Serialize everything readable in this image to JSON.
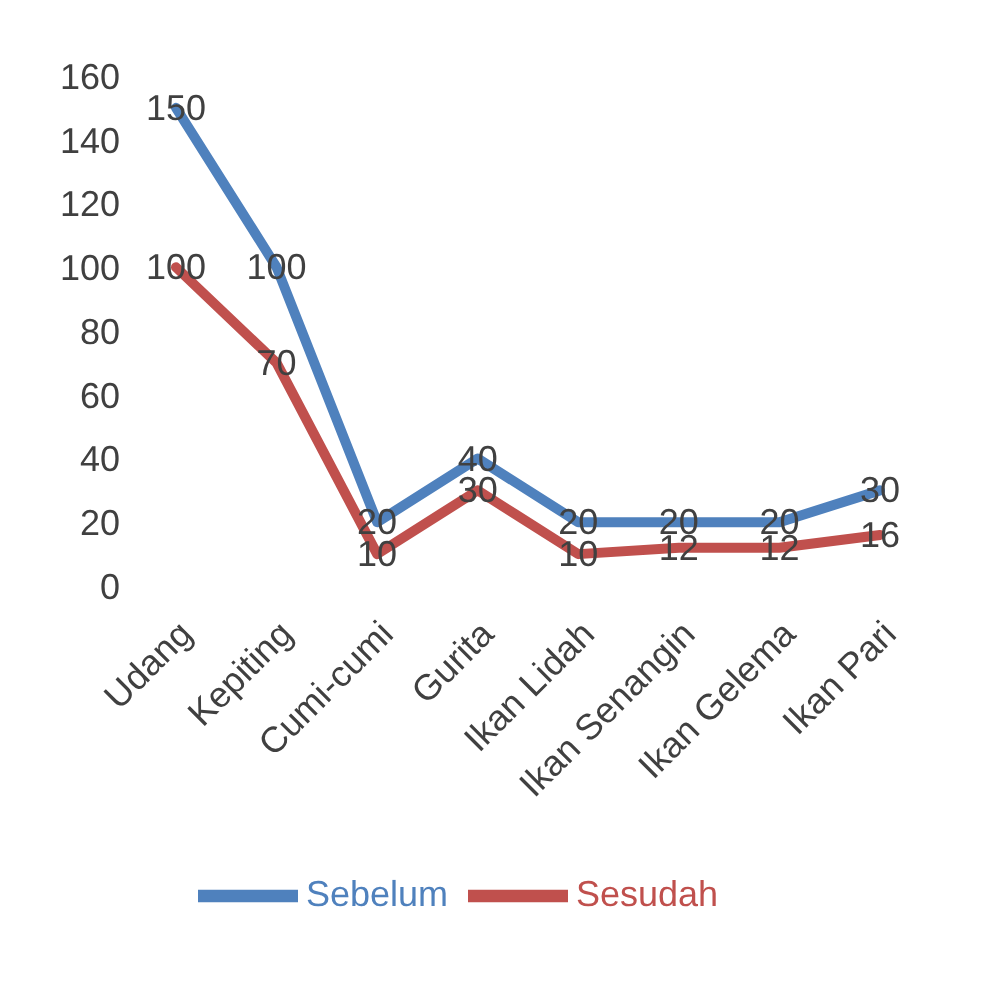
{
  "chart_data": {
    "type": "line",
    "categories": [
      "Udang",
      "Kepiting",
      "Cumi-cumi",
      "Gurita",
      "Ikan Lidah",
      "Ikan Senangin",
      "Ikan Gelema",
      "Ikan Pari"
    ],
    "series": [
      {
        "name": "Sebelum",
        "color": "#4f81bd",
        "values": [
          150,
          100,
          20,
          40,
          20,
          20,
          20,
          30
        ]
      },
      {
        "name": "Sesudah",
        "color": "#c0504d",
        "values": [
          100,
          70,
          10,
          30,
          10,
          12,
          12,
          16
        ]
      }
    ],
    "ylim": [
      0,
      160
    ],
    "yticks": [
      0,
      20,
      40,
      60,
      80,
      100,
      120,
      140,
      160
    ],
    "grid": false,
    "legend": "bottom",
    "marker": "none",
    "line_style": "solid",
    "data_labels": true
  }
}
